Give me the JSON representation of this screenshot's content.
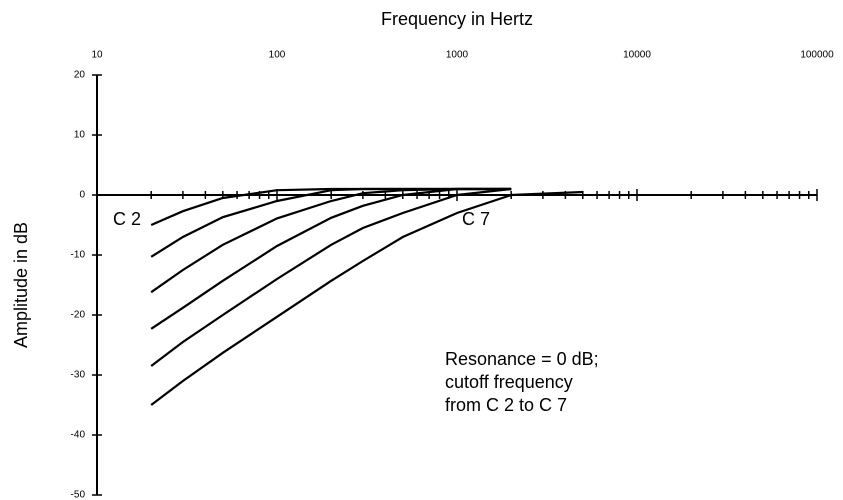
{
  "chart_data": {
    "type": "line",
    "title": "Frequency in Hertz",
    "y_label": "Amplitude in dB",
    "x": [
      20,
      30,
      50,
      100,
      200,
      300,
      500,
      1000,
      2000,
      5000
    ],
    "x_scale": "log",
    "xlim": [
      10,
      100000
    ],
    "xticks": [
      10,
      100,
      1000,
      10000,
      100000
    ],
    "ylim": [
      -50,
      20
    ],
    "yticks": [
      -50,
      -40,
      -30,
      -20,
      -10,
      0,
      10,
      20
    ],
    "grid": false,
    "series": [
      {
        "name": "C 2",
        "color": "#000000",
        "values": [
          -5,
          -2.7,
          -0.5,
          0.8,
          1,
          1,
          1,
          1,
          1,
          null
        ]
      },
      {
        "color": "#000000",
        "values": [
          -10.3,
          -7,
          -3.7,
          -1,
          0.8,
          1,
          1,
          1,
          1,
          null
        ]
      },
      {
        "color": "#000000",
        "values": [
          -16.2,
          -12.5,
          -8.3,
          -3.9,
          -1,
          0.3,
          0.8,
          1,
          1,
          null
        ]
      },
      {
        "color": "#000000",
        "values": [
          -22.3,
          -18.8,
          -14.3,
          -8.5,
          -3.8,
          -1.8,
          0,
          1,
          1,
          null
        ]
      },
      {
        "color": "#000000",
        "values": [
          -28.5,
          -24.5,
          -20,
          -14,
          -8.3,
          -5.5,
          -3,
          0,
          1,
          null
        ]
      },
      {
        "name": "C 7",
        "color": "#000000",
        "values": [
          -35,
          -31,
          -26.3,
          -20.3,
          -14.3,
          -11,
          -7,
          -3,
          0,
          0.5
        ]
      }
    ],
    "note": [
      "Resonance = 0 dB;",
      "cutoff frequency",
      "from C 2 to C 7"
    ]
  }
}
